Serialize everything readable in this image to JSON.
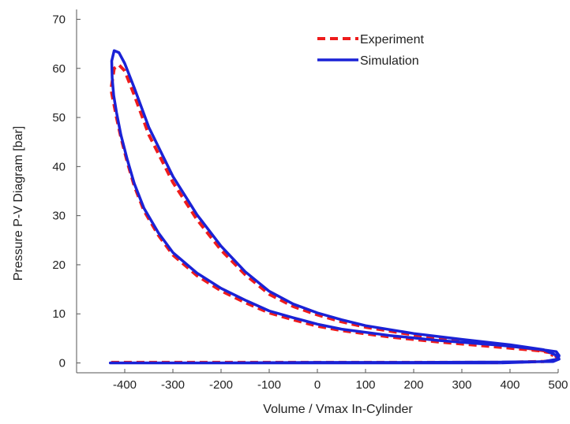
{
  "chart_data": {
    "type": "line",
    "title": "",
    "xlabel": "Volume / Vmax In-Cylinder",
    "ylabel": "Pressure P-V Diagram [bar]",
    "xlim": [
      -500,
      500
    ],
    "ylim": [
      -2,
      72
    ],
    "xticks": [
      -400,
      -300,
      -200,
      -100,
      0,
      100,
      200,
      300,
      400,
      500
    ],
    "yticks": [
      0,
      10,
      20,
      30,
      40,
      50,
      60,
      70
    ],
    "grid": false,
    "legend_position": "top-right",
    "series": [
      {
        "name": "Experiment",
        "color": "#ee1c1c",
        "style": "dashed",
        "x": [
          -428,
          0,
          200,
          380,
          470,
          495,
          498,
          490,
          460,
          380,
          250,
          150,
          50,
          0,
          -50,
          -100,
          -150,
          -200,
          -250,
          -300,
          -330,
          -360,
          -380,
          -395,
          -408,
          -417,
          -423,
          -427,
          -428,
          -422,
          -412,
          -400,
          -380,
          -350,
          -300,
          -250,
          -200,
          -150,
          -100,
          -50,
          0,
          50,
          100,
          200,
          300,
          400,
          470,
          490
        ],
        "values": [
          0.1,
          0.1,
          0.1,
          0.1,
          0.3,
          0.6,
          1.0,
          2.0,
          2.5,
          3.2,
          4.3,
          5.3,
          6.6,
          7.5,
          8.8,
          10.2,
          12.3,
          14.7,
          17.8,
          22.0,
          26.0,
          31.0,
          36.0,
          41.0,
          46.0,
          50.0,
          53.0,
          55.0,
          56.0,
          60.0,
          60.7,
          59.5,
          54.5,
          46.5,
          36.8,
          29.2,
          23.0,
          18.0,
          14.0,
          11.5,
          9.8,
          8.4,
          7.3,
          5.7,
          4.5,
          3.5,
          2.5,
          1.5
        ]
      },
      {
        "name": "Simulation",
        "color": "#1a22d6",
        "style": "solid",
        "x": [
          -430,
          0,
          200,
          380,
          470,
          500,
          502,
          496,
          460,
          380,
          250,
          150,
          50,
          0,
          -50,
          -100,
          -150,
          -200,
          -250,
          -300,
          -330,
          -360,
          -380,
          -395,
          -408,
          -417,
          -423,
          -426,
          -427,
          -422,
          -412,
          -400,
          -380,
          -350,
          -300,
          -250,
          -200,
          -150,
          -100,
          -50,
          0,
          50,
          100,
          200,
          300,
          400,
          470,
          495,
          502,
          490,
          400,
          200,
          0,
          -200,
          -430
        ],
        "values": [
          0.0,
          0.0,
          0.0,
          0.0,
          0.3,
          0.8,
          1.5,
          2.3,
          2.8,
          3.6,
          4.6,
          5.6,
          6.9,
          7.9,
          9.2,
          10.6,
          12.8,
          15.2,
          18.3,
          22.5,
          26.5,
          31.5,
          36.5,
          41.5,
          46.5,
          51.0,
          54.5,
          58.0,
          61.5,
          63.6,
          63.2,
          61.0,
          56.0,
          48.0,
          38.0,
          30.2,
          23.8,
          18.6,
          14.6,
          12.0,
          10.2,
          8.8,
          7.6,
          6.0,
          4.8,
          3.7,
          2.7,
          1.6,
          0.8,
          0.3,
          0.2,
          0.1,
          0.1,
          0.0,
          0.0
        ]
      }
    ]
  }
}
